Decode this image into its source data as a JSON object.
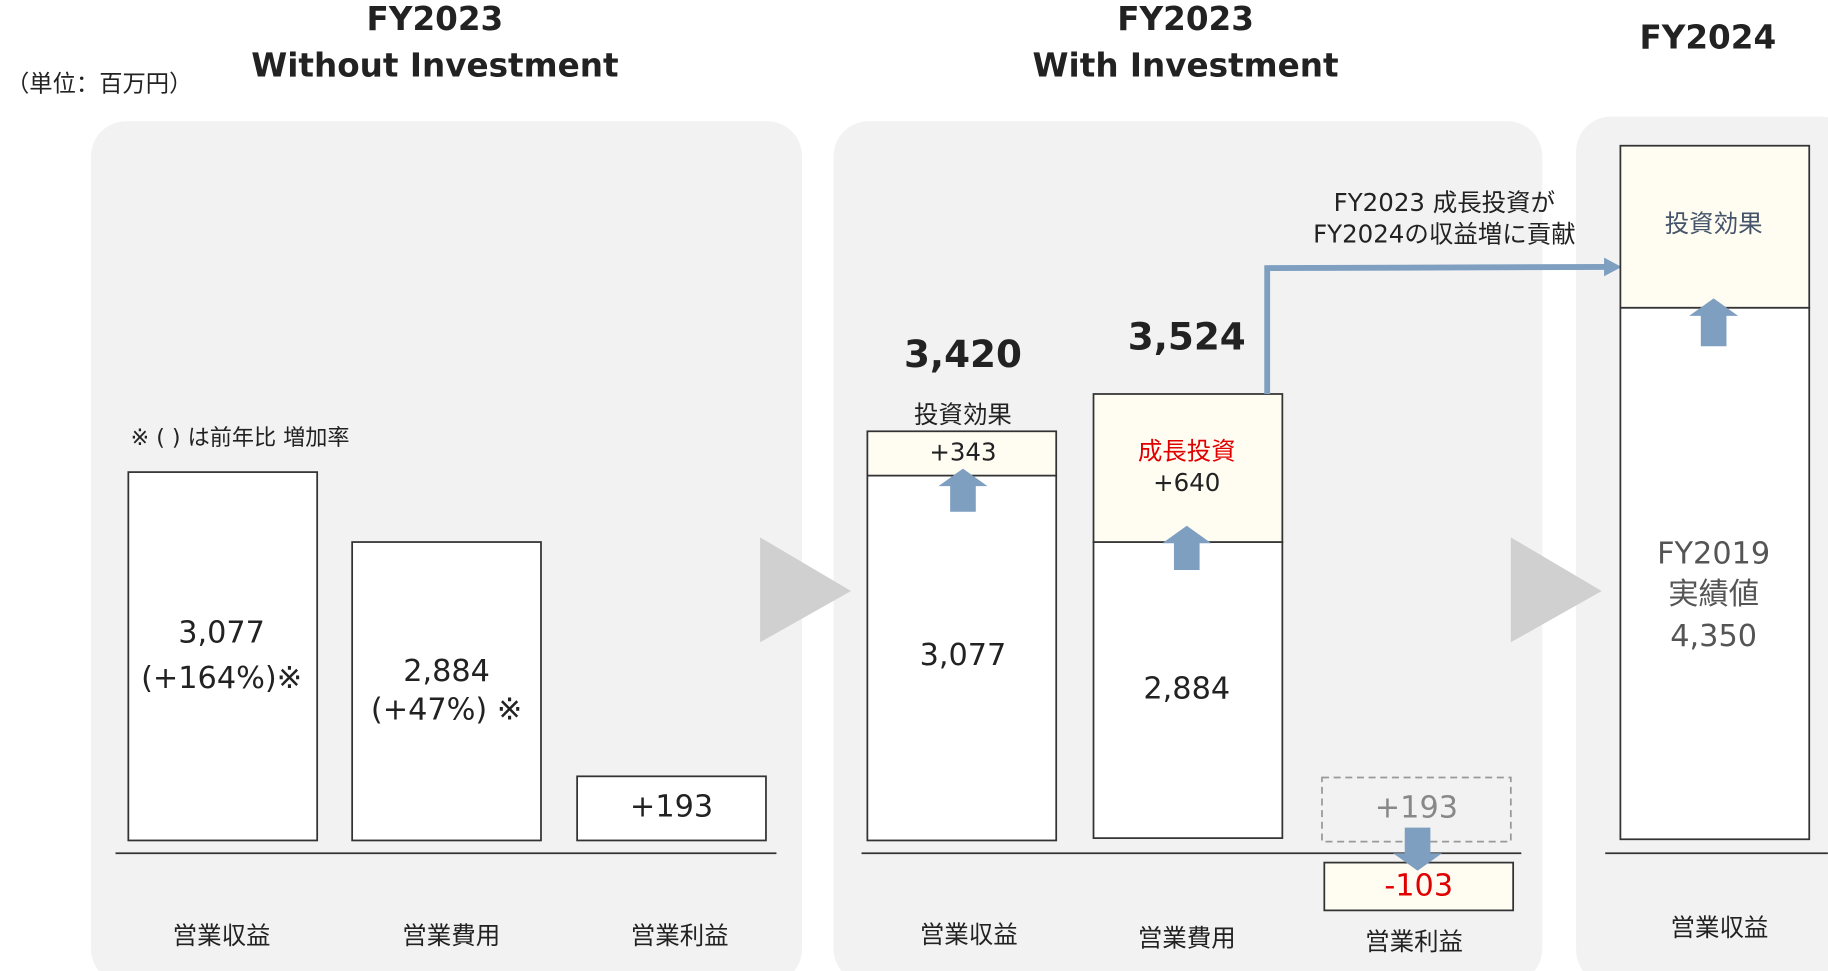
{
  "unit": "（単位：百万円）",
  "panels": [
    {
      "title": [
        "FY2023",
        "Without Investment"
      ],
      "note": "※ ( ) は前年比 増加率",
      "bars": [
        {
          "label": "営業収益",
          "value": "3,077",
          "change": "(+164%)※"
        },
        {
          "label": "営業費用",
          "value": "2,884",
          "change": "(+47%) ※"
        },
        {
          "label": "営業利益",
          "value": "+193"
        }
      ]
    },
    {
      "title": [
        "FY2023",
        "With Investment"
      ],
      "bars": [
        {
          "label": "営業収益",
          "total": "3,420",
          "top_label": "投資効果",
          "top_value": "+343",
          "base_value": "3,077"
        },
        {
          "label": "営業費用",
          "total": "3,524",
          "top_label": "成長投資",
          "top_value": "+640",
          "base_value": "2,884"
        },
        {
          "label": "営業利益",
          "before": "+193",
          "after": "-103"
        }
      ],
      "connector": [
        "FY2023 成長投資が",
        "FY2024の収益増に貢献"
      ]
    },
    {
      "title": [
        "FY2024"
      ],
      "bars": [
        {
          "label": "営業収益",
          "top_label": "投資効果",
          "base_lines": [
            "FY2019",
            "実績値",
            "4,350"
          ]
        }
      ]
    }
  ]
}
